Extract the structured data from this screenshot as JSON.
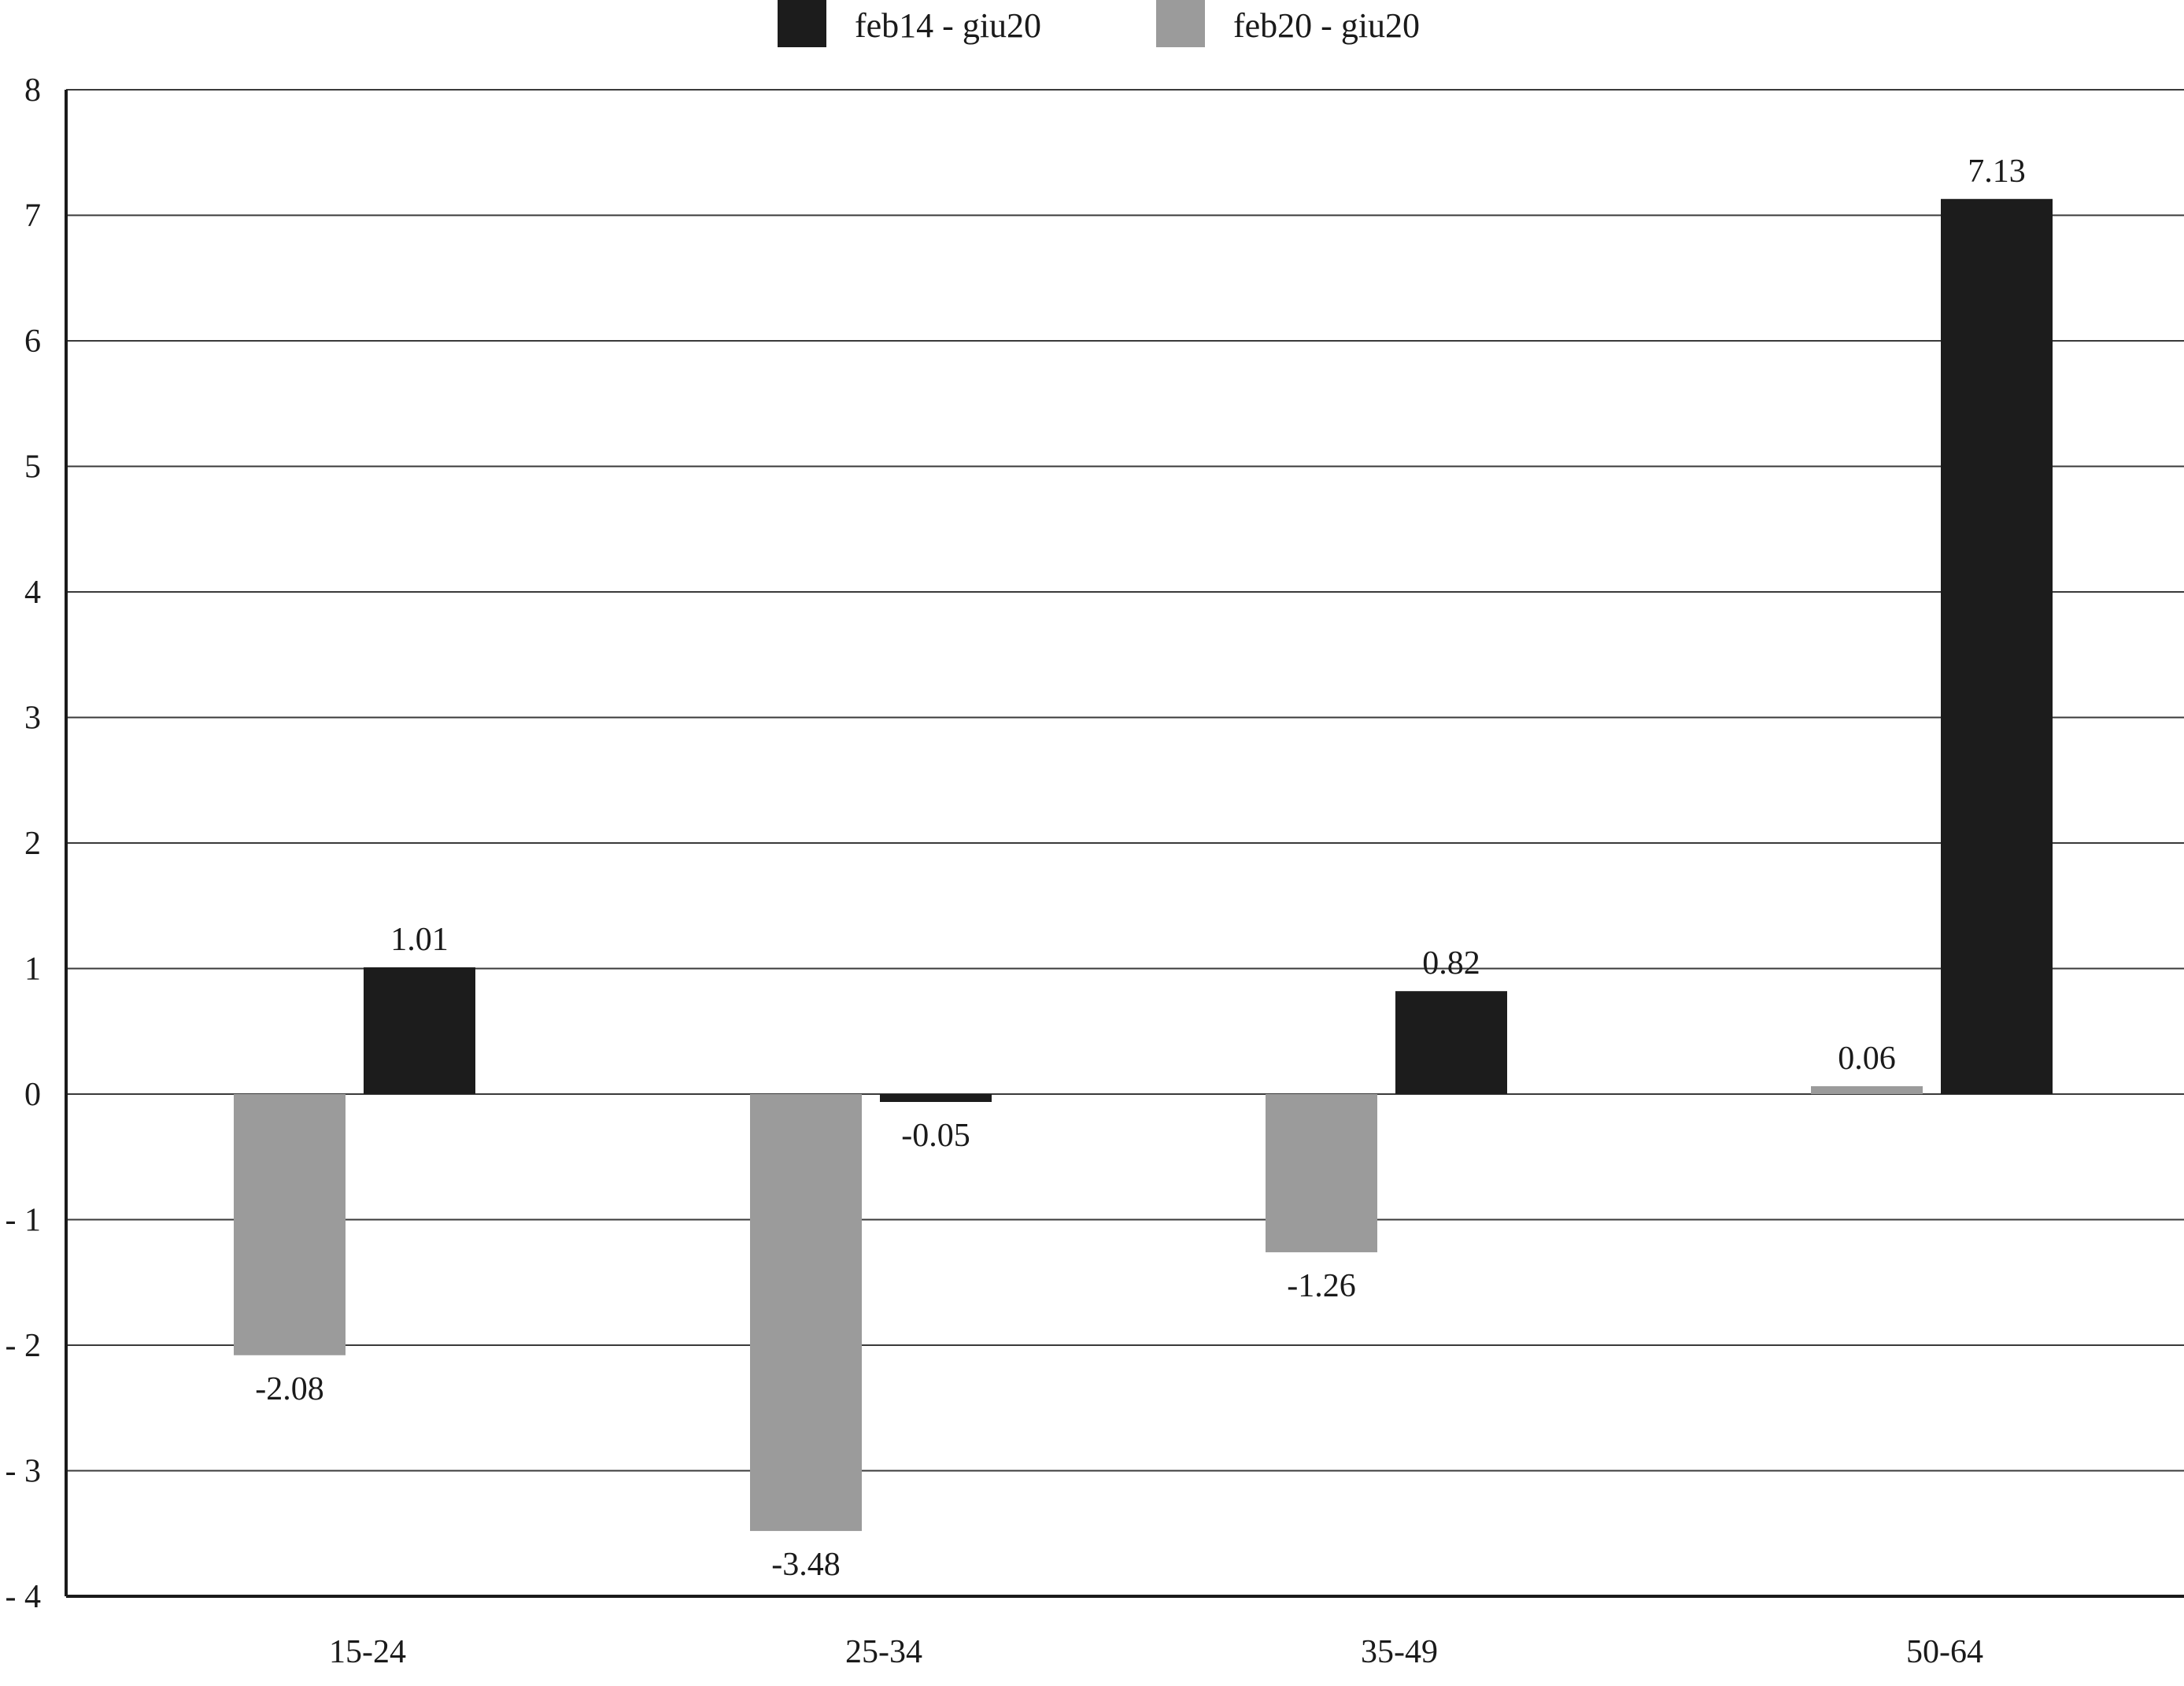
{
  "chart_data": {
    "type": "bar",
    "title": "",
    "xlabel": "",
    "ylabel": "",
    "categories": [
      "15-24",
      "25-34",
      "35-49",
      "50-64"
    ],
    "series": [
      {
        "name": "feb20 - giu20",
        "color": "#9b9b9b",
        "values": [
          -2.08,
          -3.48,
          -1.26,
          0.06
        ]
      },
      {
        "name": "feb14 - giu20",
        "color": "#1c1c1c",
        "values": [
          1.01,
          -0.05,
          0.82,
          7.13
        ]
      }
    ],
    "legend_order": [
      1,
      0
    ],
    "legend_position": "top-center",
    "ylim": [
      -4,
      8
    ],
    "yticks": [
      8,
      7,
      6,
      5,
      4,
      3,
      2,
      1,
      0,
      -1,
      -2,
      -3,
      -4
    ],
    "ytick_labels": [
      "8",
      "7",
      "6",
      "5",
      "4",
      "3",
      "2",
      "1",
      "0",
      "- 1",
      "- 2",
      "- 3",
      "- 4"
    ],
    "grid": true
  }
}
